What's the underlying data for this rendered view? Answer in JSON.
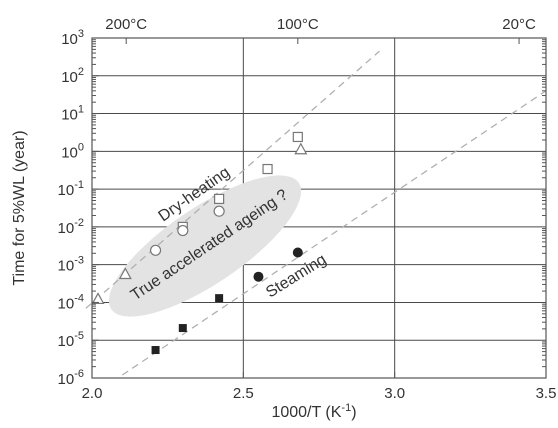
{
  "chart_data": {
    "type": "scatter",
    "xlabel": "1000/T (K",
    "xlabel_sup": "-1",
    "xlabel_close": ")",
    "ylabel": "Time for 5%WL (year)",
    "xlim": [
      2.0,
      3.5
    ],
    "ylim_log10": [
      -6,
      3
    ],
    "y_scale": "log",
    "x_ticks": [
      "2.0",
      "2.5",
      "3.0",
      "3.5"
    ],
    "y_ticks": [
      {
        "base": "10",
        "exp": "3"
      },
      {
        "base": "10",
        "exp": "2"
      },
      {
        "base": "10",
        "exp": "1"
      },
      {
        "base": "10",
        "exp": "0"
      },
      {
        "base": "10",
        "exp": "-1"
      },
      {
        "base": "10",
        "exp": "-2"
      },
      {
        "base": "10",
        "exp": "-3"
      },
      {
        "base": "10",
        "exp": "-4"
      },
      {
        "base": "10",
        "exp": "-5"
      },
      {
        "base": "10",
        "exp": "-6"
      }
    ],
    "top_axis_labels": [
      {
        "text": "200°C",
        "x": 2.113
      },
      {
        "text": "100°C",
        "x": 2.68
      },
      {
        "text": "20°C",
        "x": 3.411
      }
    ],
    "grid": true,
    "series": [
      {
        "marker": "open-square",
        "points": [
          [
            2.3,
            0.01
          ],
          [
            2.42,
            0.055
          ],
          [
            2.58,
            0.34
          ],
          [
            2.68,
            2.4
          ]
        ]
      },
      {
        "marker": "open-circle",
        "points": [
          [
            2.21,
            0.0024
          ],
          [
            2.3,
            0.008
          ],
          [
            2.42,
            0.026
          ]
        ]
      },
      {
        "marker": "open-triangle",
        "points": [
          [
            2.02,
            0.00012
          ],
          [
            2.11,
            0.00055
          ],
          [
            2.69,
            1.1
          ]
        ]
      },
      {
        "marker": "filled-square",
        "points": [
          [
            2.21,
            5.5e-06
          ],
          [
            2.3,
            2.1e-05
          ],
          [
            2.42,
            0.00013
          ]
        ]
      },
      {
        "marker": "filled-circle",
        "points": [
          [
            2.55,
            0.00048
          ],
          [
            2.68,
            0.0021
          ]
        ]
      }
    ],
    "trend_lines": [
      {
        "from": [
          1.98,
          7e-05
        ],
        "to": [
          2.95,
          450
        ]
      },
      {
        "from": [
          2.1,
          1.2e-06
        ],
        "to": [
          3.5,
          40
        ]
      }
    ],
    "annotations": [
      {
        "text": "Dry-heating"
      },
      {
        "text": "True accelerated ageing ?"
      },
      {
        "text": "Steaming"
      }
    ],
    "colors": {
      "grid": "#4a4a4a",
      "axes": "#555555",
      "trend": "#b0b0b0",
      "region": "#e3e3e3",
      "marker": "#222222",
      "open_marker": "#777777"
    }
  }
}
